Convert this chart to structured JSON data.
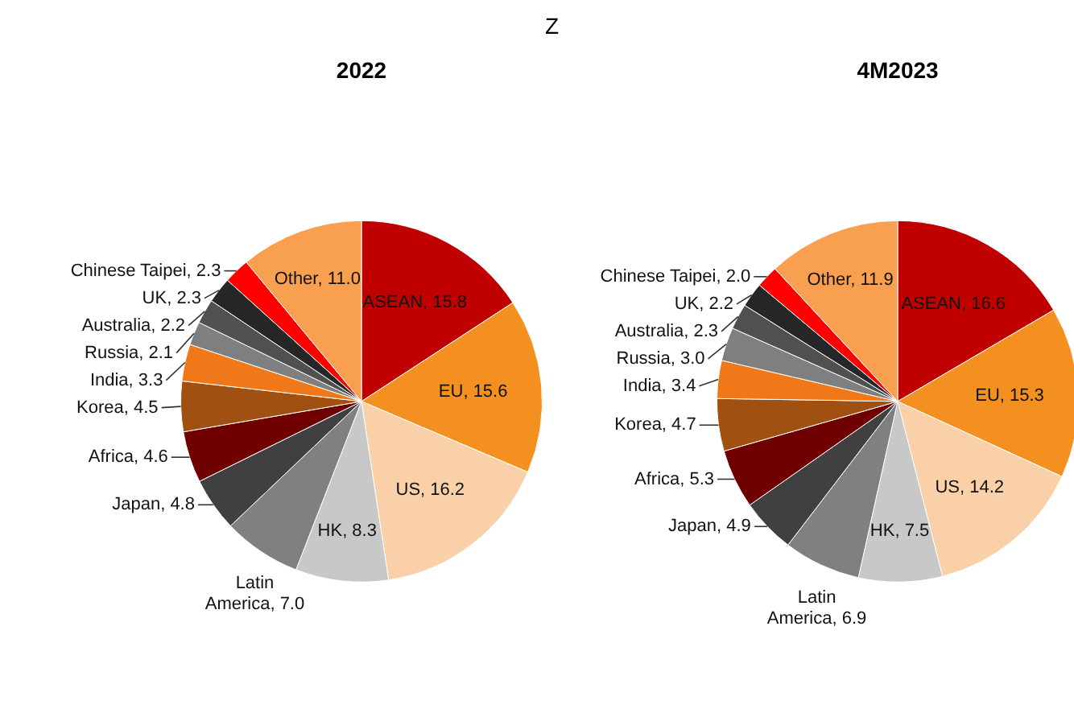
{
  "chart_data": [
    {
      "type": "pie",
      "title": "2022",
      "annotations": [
        "Z"
      ],
      "data_labels": true,
      "categories": [
        "ASEAN",
        "EU",
        "US",
        "HK",
        "Latin America",
        "Japan",
        "Africa",
        "Korea",
        "India",
        "Russia",
        "Australia",
        "UK",
        "Chinese Taipei",
        "Other"
      ],
      "values": [
        15.8,
        15.6,
        16.2,
        8.3,
        7.0,
        4.8,
        4.6,
        4.5,
        3.3,
        2.1,
        2.2,
        2.3,
        2.3,
        11.0
      ],
      "value_labels": [
        "15.8",
        "15.6",
        "16.2",
        "8.3",
        "7.0",
        "4.8",
        "4.6",
        "4.5",
        "3.3",
        "2.1",
        "2.2",
        "2.3",
        "2.3",
        "11.0"
      ],
      "colors": [
        "#c00000",
        "#f39020",
        "#fad0a8",
        "#c8c8c8",
        "#808080",
        "#404040",
        "#700000",
        "#a05010",
        "#f07818",
        "#7f7f7f",
        "#505050",
        "#262626",
        "#ff0000",
        "#f8a050"
      ]
    },
    {
      "type": "pie",
      "title": "4M2023",
      "data_labels": true,
      "categories": [
        "ASEAN",
        "EU",
        "US",
        "HK",
        "Latin America",
        "Japan",
        "Africa",
        "Korea",
        "India",
        "Russia",
        "Australia",
        "UK",
        "Chinese Taipei",
        "Other"
      ],
      "values": [
        16.6,
        15.3,
        14.2,
        7.5,
        6.9,
        4.9,
        5.3,
        4.7,
        3.4,
        3.0,
        2.3,
        2.2,
        2.0,
        11.9
      ],
      "value_labels": [
        "16.6",
        "15.3",
        "14.2",
        "7.5",
        "6.9",
        "4.9",
        "5.3",
        "4.7",
        "3.4",
        "3.0",
        "2.3",
        "2.2",
        "2.0",
        "11.9"
      ],
      "colors": [
        "#c00000",
        "#f39020",
        "#fad0a8",
        "#c8c8c8",
        "#808080",
        "#404040",
        "#700000",
        "#a05010",
        "#f07818",
        "#7f7f7f",
        "#505050",
        "#262626",
        "#ff0000",
        "#f8a050"
      ]
    }
  ]
}
